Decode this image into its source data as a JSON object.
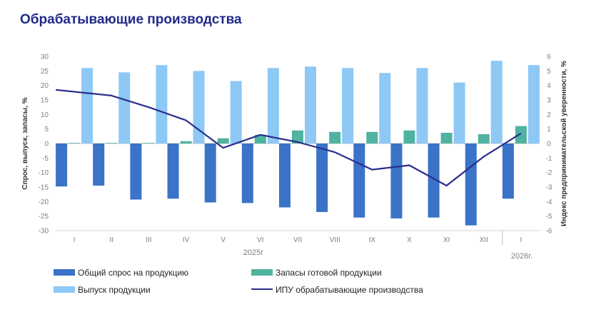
{
  "title": "Обрабатывающие производства",
  "colors": {
    "title": "#1f2a8a",
    "demand": "#3a73c8",
    "stocks": "#4fb3a0",
    "output": "#8ec8f5",
    "ipu": "#2b2e8c"
  },
  "chart_data": {
    "type": "bar",
    "categories": [
      "I",
      "II",
      "III",
      "IV",
      "V",
      "VI",
      "VII",
      "VIII",
      "IX",
      "X",
      "XI",
      "XII",
      "I"
    ],
    "groups": [
      "2025г",
      "2026г."
    ],
    "ylabel": "Спрос, выпуск, запасы, %",
    "y2label": "Индекс предпринимательской уверенности, %",
    "ylim": [
      -30,
      30
    ],
    "y2lim": [
      -6,
      6
    ],
    "yticks": [
      30,
      25,
      20,
      15,
      10,
      5,
      0,
      -5,
      -10,
      -15,
      -20,
      -25,
      -30
    ],
    "y2ticks": [
      6,
      5,
      4,
      3,
      2,
      1,
      0,
      -1,
      -2,
      -3,
      -4,
      -5,
      -6
    ],
    "series": [
      {
        "name": "Общий спрос на продукцию",
        "type": "bar",
        "values": [
          -14.8,
          -14.5,
          -19.3,
          -19.0,
          -20.3,
          -20.5,
          -22.0,
          -23.6,
          -25.5,
          -25.8,
          -25.5,
          -28.2,
          -19.0
        ]
      },
      {
        "name": "Выпуск продукции",
        "type": "bar",
        "values": [
          26.0,
          24.5,
          27.0,
          25.0,
          21.5,
          26.0,
          26.5,
          26.0,
          24.3,
          26.0,
          21.0,
          28.5,
          27.0
        ]
      },
      {
        "name": "Запасы готовой продукции",
        "type": "bar",
        "values": [
          0.2,
          0.2,
          0.2,
          0.8,
          1.8,
          3.0,
          4.5,
          4.0,
          4.0,
          4.5,
          3.7,
          3.2,
          6.0
        ]
      },
      {
        "name": "ИПУ обрабатывающие производства",
        "type": "line",
        "axis": "right",
        "values": [
          3.7,
          3.3,
          2.5,
          1.6,
          -0.3,
          0.6,
          0.1,
          -0.6,
          -1.8,
          -1.5,
          -2.9,
          -0.9,
          0.7
        ]
      }
    ]
  },
  "legend": {
    "demand": "Общий спрос на продукцию",
    "stocks": "Запасы готовой продукции",
    "output": "Выпуск продукции",
    "ipu": "ИПУ обрабатывающие производства"
  }
}
